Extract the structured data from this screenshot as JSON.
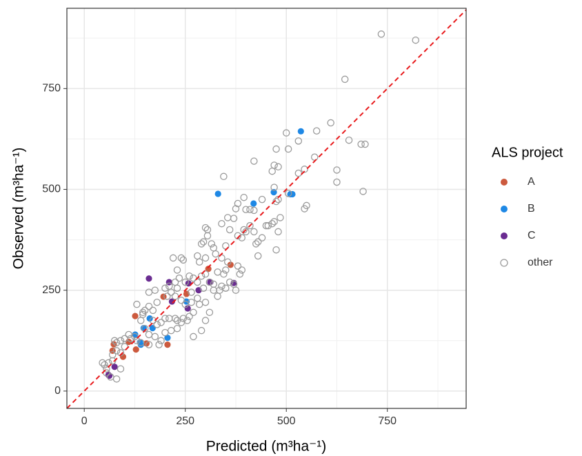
{
  "chart_data": {
    "type": "scatter",
    "xlabel": "Predicted (m³ha⁻¹)",
    "ylabel": "Observed (m³ha⁻¹)",
    "legend_title": "ALS project",
    "legend": "right",
    "grid": true,
    "identity_line": true,
    "xlim": [
      -43,
      945
    ],
    "ylim": [
      -43,
      949
    ],
    "xticks": [
      0,
      250,
      500,
      750
    ],
    "yticks": [
      0,
      250,
      500,
      750
    ],
    "series": [
      {
        "name": "A",
        "color": "#cc5a3e",
        "filled": true,
        "x": [
          126,
          196,
          253,
          307,
          362,
          206,
          154,
          96,
          73,
          128,
          110,
          70
        ],
        "values": [
          186,
          234,
          241,
          303,
          313,
          115,
          118,
          85,
          116,
          103,
          122,
          100
        ]
      },
      {
        "name": "B",
        "color": "#1e88e5",
        "filled": true,
        "x": [
          536,
          331,
          419,
          469,
          515,
          510,
          253,
          206,
          162,
          147,
          169,
          126,
          138,
          140
        ],
        "values": [
          644,
          489,
          465,
          493,
          488,
          488,
          222,
          132,
          180,
          156,
          156,
          140,
          121,
          115
        ]
      },
      {
        "name": "C",
        "color": "#6a2c91",
        "filled": true,
        "x": [
          160,
          210,
          258,
          370,
          312,
          283,
          217,
          256,
          60,
          75,
          62
        ],
        "values": [
          279,
          270,
          267,
          268,
          270,
          250,
          222,
          205,
          40,
          60,
          38
        ]
      },
      {
        "name": "other",
        "color": "#9a9a9a",
        "filled": false,
        "x": [
          735,
          820,
          645,
          610,
          575,
          500,
          530,
          655,
          685,
          695,
          625,
          625,
          690,
          570,
          545,
          530,
          505,
          470,
          475,
          480,
          550,
          545,
          505,
          475,
          470,
          465,
          480,
          420,
          380,
          375,
          395,
          410,
          440,
          345,
          470,
          465,
          485,
          480,
          455,
          430,
          425,
          440,
          475,
          430,
          450,
          420,
          400,
          420,
          355,
          370,
          340,
          360,
          380,
          390,
          350,
          300,
          305,
          305,
          315,
          320,
          290,
          295,
          280,
          285,
          300,
          325,
          340,
          355,
          380,
          390,
          385,
          350,
          345,
          330,
          320,
          340,
          350,
          310,
          300,
          290,
          280,
          270,
          260,
          245,
          240,
          220,
          230,
          235,
          250,
          225,
          230,
          215,
          210,
          200,
          205,
          225,
          240,
          250,
          265,
          280,
          285,
          300,
          330,
          335,
          320,
          295,
          270,
          260,
          245,
          230,
          225,
          210,
          200,
          190,
          180,
          170,
          170,
          160,
          150,
          145,
          140,
          150,
          160,
          175,
          190,
          185,
          160,
          140,
          130,
          125,
          115,
          110,
          100,
          90,
          80,
          75,
          80,
          70,
          90,
          100,
          60,
          55,
          50,
          45,
          55,
          65,
          80,
          90,
          70,
          240,
          255,
          270,
          300,
          310,
          265,
          180,
          175,
          160,
          130,
          145,
          200,
          215,
          230,
          290,
          375,
          370,
          360,
          395,
          400,
          410
        ],
        "values": [
          885,
          870,
          773,
          665,
          645,
          640,
          620,
          622,
          612,
          612,
          548,
          518,
          495,
          580,
          550,
          540,
          490,
          505,
          470,
          475,
          460,
          452,
          600,
          600,
          560,
          545,
          556,
          570,
          465,
          452,
          480,
          450,
          475,
          532,
          420,
          415,
          430,
          395,
          410,
          370,
          365,
          380,
          350,
          335,
          410,
          395,
          450,
          448,
          430,
          428,
          415,
          400,
          385,
          380,
          360,
          405,
          400,
          385,
          365,
          355,
          365,
          370,
          335,
          320,
          330,
          340,
          330,
          320,
          310,
          300,
          290,
          300,
          290,
          295,
          265,
          260,
          255,
          270,
          290,
          285,
          270,
          280,
          285,
          325,
          330,
          330,
          300,
          280,
          270,
          270,
          255,
          245,
          260,
          255,
          235,
          235,
          225,
          215,
          245,
          230,
          215,
          220,
          235,
          250,
          250,
          255,
          195,
          185,
          180,
          175,
          180,
          180,
          180,
          170,
          165,
          175,
          200,
          210,
          200,
          190,
          175,
          155,
          140,
          135,
          125,
          115,
          115,
          120,
          125,
          135,
          130,
          140,
          130,
          125,
          120,
          125,
          100,
          90,
          95,
          110,
          70,
          55,
          65,
          70,
          45,
          35,
          30,
          55,
          75,
          170,
          175,
          135,
          175,
          195,
          220,
          220,
          250,
          245,
          215,
          195,
          145,
          150,
          155,
          150,
          250,
          265,
          270,
          400,
          395,
          410
        ]
      }
    ]
  }
}
